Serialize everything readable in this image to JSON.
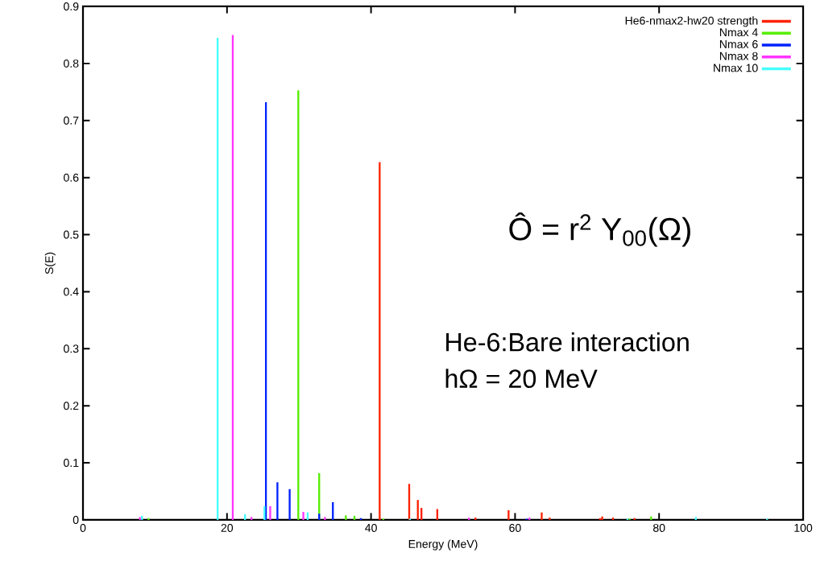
{
  "chart_data": {
    "type": "bar",
    "xlabel": "Energy (MeV)",
    "ylabel": "S(E)",
    "annotations": [
      "Ô = r$^{2}$ Y$_{00}$(Ω)",
      "He-6:Bare interaction",
      "hΩ = 20 MeV"
    ],
    "xlim": [
      0,
      100
    ],
    "xticks": [
      0,
      20,
      40,
      60,
      80,
      100
    ],
    "ylim": [
      0,
      0.9
    ],
    "yticks": [
      0,
      0.1,
      0.2,
      0.3,
      0.4,
      0.5,
      0.6,
      0.7,
      0.8,
      0.9
    ],
    "legend": "top right",
    "grid": false,
    "series": [
      {
        "name": "He6-nmax2-hw20 strength",
        "color": "#ff2200",
        "x": [
          41.2,
          45.3,
          46.5,
          47.0,
          49.2,
          54.5,
          59.1,
          63.7,
          64.8,
          71.8,
          72.1,
          73.6,
          76.6
        ],
        "values": [
          0.627,
          0.063,
          0.035,
          0.021,
          0.019,
          0.004,
          0.017,
          0.013,
          0.004,
          0.003,
          0.006,
          0.004,
          0.003
        ]
      },
      {
        "name": "Nmax 4",
        "color": "#55ee00",
        "x": [
          9.1,
          29.9,
          32.8,
          36.5,
          37.7,
          41.7,
          75.9,
          78.9
        ],
        "values": [
          0.003,
          0.753,
          0.082,
          0.008,
          0.007,
          0.002,
          0.002,
          0.006
        ]
      },
      {
        "name": "Nmax 6",
        "color": "#0022ff",
        "x": [
          25.4,
          27.0,
          28.7,
          32.8,
          34.7,
          38.6,
          61.6
        ],
        "values": [
          0.732,
          0.066,
          0.054,
          0.011,
          0.031,
          0.003,
          0.002
        ]
      },
      {
        "name": "Nmax 8",
        "color": "#ff33ff",
        "x": [
          7.9,
          20.8,
          23.4,
          26.0,
          30.6,
          33.6,
          53.6,
          62.0
        ],
        "values": [
          0.005,
          0.85,
          0.005,
          0.024,
          0.014,
          0.005,
          0.004,
          0.004
        ]
      },
      {
        "name": "Nmax 10",
        "color": "#44ffff",
        "x": [
          8.2,
          18.7,
          22.5,
          25.2,
          31.2,
          45.4,
          75.6,
          85.1,
          95.0
        ],
        "values": [
          0.007,
          0.845,
          0.01,
          0.024,
          0.013,
          0.002,
          0.002,
          0.005,
          0.002
        ]
      }
    ]
  }
}
